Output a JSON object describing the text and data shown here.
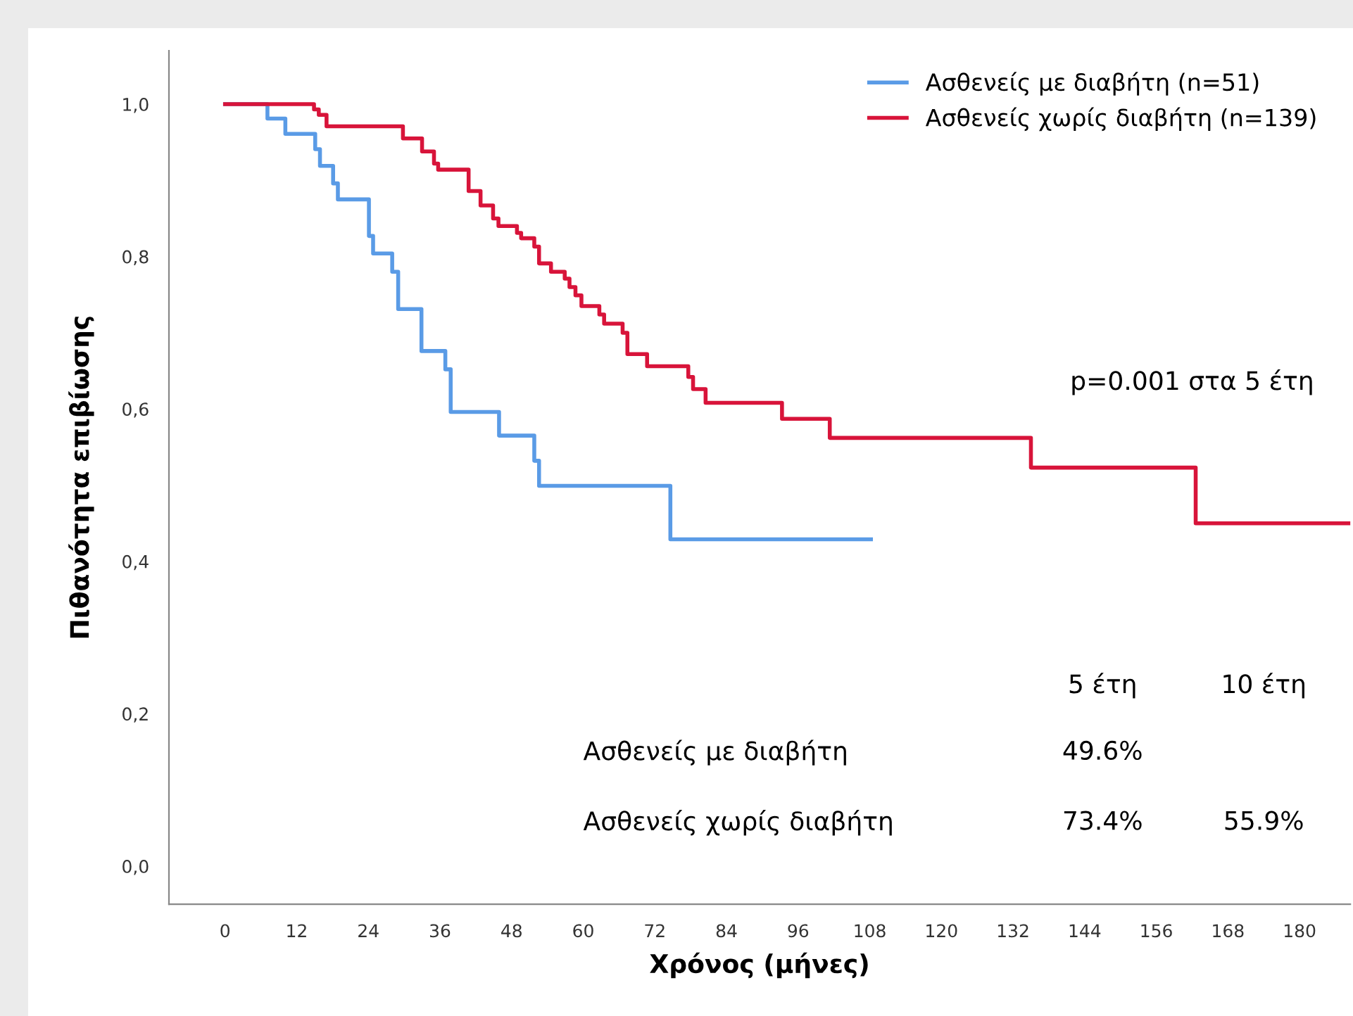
{
  "chart_data": {
    "type": "step",
    "ylabel": "Πιθανότητα επιβίωσης",
    "xlabel": "Χρόνος (μήνες)",
    "xlim": [
      -9.4,
      188.5
    ],
    "xticks": [
      0,
      12,
      24,
      36,
      48,
      60,
      72,
      84,
      96,
      108,
      120,
      132,
      144,
      156,
      168,
      180
    ],
    "ylim": [
      -0.05,
      1.07
    ],
    "yticks": [
      {
        "value": 0.0,
        "label": "0,0"
      },
      {
        "value": 0.2,
        "label": "0,2"
      },
      {
        "value": 0.4,
        "label": "0,4"
      },
      {
        "value": 0.6,
        "label": "0,6"
      },
      {
        "value": 0.8,
        "label": "0,8"
      },
      {
        "value": 1.0,
        "label": "1,0"
      }
    ],
    "grid": false,
    "legend": "top right",
    "marker": "none",
    "line_style": "solid",
    "series": [
      {
        "name": "Ασθενείς με διαβήτη (n=51)",
        "color": "#5a9be6",
        "x": [
          0,
          7.1,
          10.1,
          15.1,
          15.9,
          18.1,
          18.9,
          24.1,
          24.8,
          28.0,
          29.0,
          32.9,
          36.9,
          37.8,
          45.9,
          51.8,
          52.6,
          74.6,
          108.2
        ],
        "values": [
          1.0,
          0.981,
          0.961,
          0.941,
          0.919,
          0.896,
          0.875,
          0.827,
          0.804,
          0.78,
          0.731,
          0.676,
          0.652,
          0.596,
          0.565,
          0.532,
          0.499,
          0.429,
          0.429
        ]
      },
      {
        "name": "Ασθενείς χωρίς διαβήτη (n=139)",
        "color": "#d8143a",
        "x": [
          0,
          14.9,
          15.7,
          17.0,
          29.8,
          33.0,
          35.0,
          35.7,
          40.8,
          42.8,
          44.9,
          45.8,
          48.9,
          49.6,
          51.8,
          52.6,
          54.6,
          56.9,
          57.7,
          58.7,
          59.7,
          62.7,
          63.5,
          66.6,
          67.4,
          70.7,
          77.6,
          78.4,
          80.5,
          93.3,
          101.3,
          135.0,
          162.6,
          188.3
        ],
        "values": [
          1.0,
          0.993,
          0.986,
          0.971,
          0.955,
          0.938,
          0.922,
          0.914,
          0.886,
          0.867,
          0.85,
          0.84,
          0.831,
          0.824,
          0.813,
          0.791,
          0.78,
          0.771,
          0.76,
          0.749,
          0.735,
          0.724,
          0.712,
          0.7,
          0.672,
          0.656,
          0.642,
          0.626,
          0.608,
          0.587,
          0.562,
          0.523,
          0.45,
          0.45
        ]
      }
    ],
    "annotations": [
      "p=0.001 στα 5 έτη",
      "5 έτη",
      "10 έτη",
      "Ασθενείς με διαβήτη",
      "49.6%",
      "Ασθενείς χωρίς διαβήτη",
      "73.4%",
      "55.9%"
    ]
  }
}
